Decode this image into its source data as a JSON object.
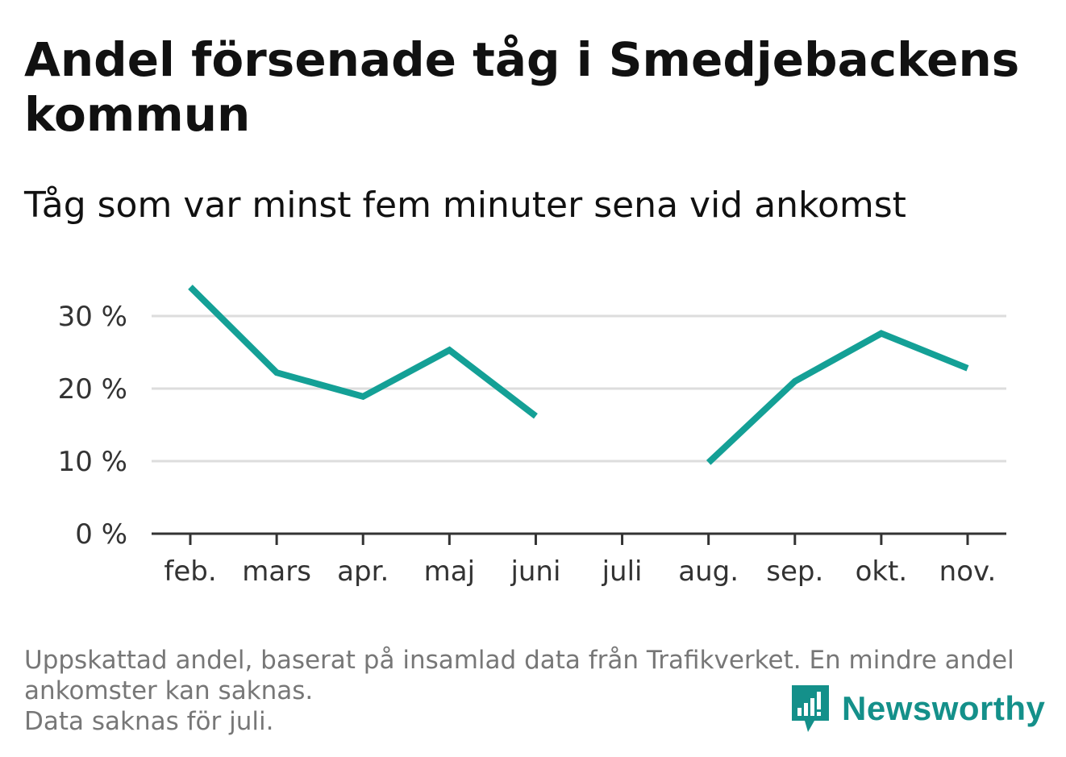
{
  "title": "Andel försenade tåg i Smedjebackens kommun",
  "subtitle": "Tåg som var minst fem minuter sena vid ankomst",
  "footnote": {
    "line1": "Uppskattad andel, baserat på insamlad data från Trafikverket. En mindre andel",
    "line2": "ankomster kan saknas.",
    "line3": "Data saknas för juli."
  },
  "brand": {
    "name": "Newsworthy",
    "icon": "newsworthy-logo-icon",
    "color": "#14908a"
  },
  "chart_data": {
    "type": "line",
    "categories": [
      "feb.",
      "mars",
      "apr.",
      "maj",
      "juni",
      "juli",
      "aug.",
      "sep.",
      "okt.",
      "nov."
    ],
    "series": [
      {
        "values": [
          34,
          22.2,
          18.9,
          25.3,
          16.2,
          null,
          9.8,
          21.0,
          27.6,
          22.8
        ],
        "color": "#14a096"
      }
    ],
    "y_ticks": [
      0,
      10,
      20,
      30
    ],
    "y_tick_labels": [
      "0 %",
      "10 %",
      "20 %",
      "30 %"
    ],
    "ylim": [
      0,
      35
    ],
    "grid": "horizontal",
    "legend": "none"
  }
}
